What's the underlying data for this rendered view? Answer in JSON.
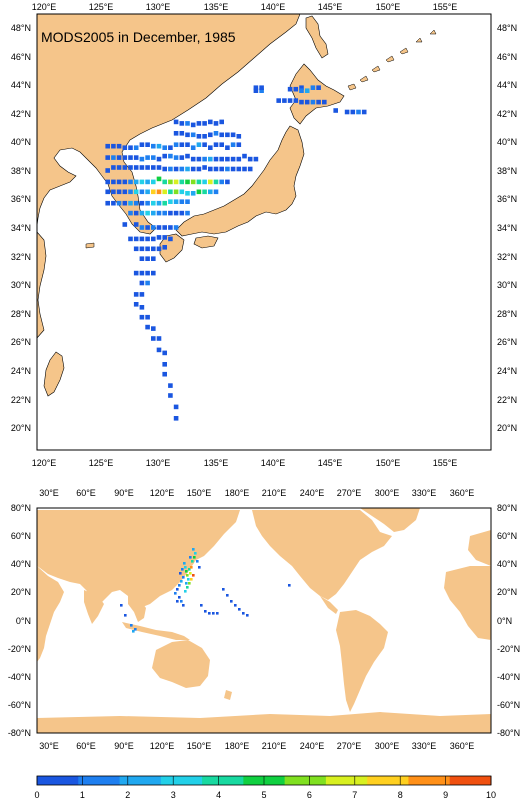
{
  "title": "MODS2005 in December, 1985",
  "colors": {
    "land": "#f5c58a",
    "ocean": "#ffffff",
    "frame": "#000000"
  },
  "top_map": {
    "lon_labels": [
      "120°E",
      "125°E",
      "130°E",
      "135°E",
      "140°E",
      "145°E",
      "150°E",
      "155°E"
    ],
    "lat_labels": [
      "48°N",
      "46°N",
      "44°N",
      "42°N",
      "40°N",
      "38°N",
      "36°N",
      "34°N",
      "32°N",
      "30°N",
      "28°N",
      "26°N",
      "24°N",
      "22°N",
      "20°N"
    ]
  },
  "bottom_map": {
    "lon_labels": [
      "30°E",
      "60°E",
      "90°E",
      "120°E",
      "150°E",
      "180°E",
      "210°E",
      "240°E",
      "270°E",
      "300°E",
      "330°E",
      "360°E"
    ],
    "lat_labels": [
      "80°N",
      "60°N",
      "40°N",
      "20°N",
      "0°N",
      "-20°N",
      "-40°N",
      "-60°N",
      "-80°N"
    ]
  },
  "colorbar": {
    "labels": [
      "0",
      "1",
      "2",
      "3",
      "4",
      "5",
      "6",
      "7",
      "8",
      "9",
      "10"
    ],
    "colors": [
      "#1a56e0",
      "#1e7ff0",
      "#20a8f0",
      "#22d0e8",
      "#18d9a0",
      "#10d040",
      "#80e020",
      "#d8f020",
      "#ffd020",
      "#ff9018",
      "#f05010"
    ]
  },
  "observation_cells": {
    "top": [
      [
        1,
        38,
        38,
        0
      ],
      [
        1,
        38,
        39,
        0
      ],
      [
        1,
        39,
        38,
        1
      ],
      [
        1,
        39,
        39,
        0
      ],
      [
        1,
        44,
        37,
        0
      ],
      [
        1,
        45,
        37,
        0
      ],
      [
        1,
        46,
        36,
        0
      ],
      [
        1,
        46,
        35,
        1
      ],
      [
        1,
        47,
        35,
        2
      ],
      [
        1,
        48,
        36,
        1
      ],
      [
        1,
        49,
        36,
        0
      ],
      [
        2,
        42,
        46,
        0
      ],
      [
        2,
        43,
        46,
        0
      ],
      [
        2,
        44,
        46,
        0
      ],
      [
        2,
        45,
        46,
        0
      ],
      [
        2,
        46,
        44,
        0
      ],
      [
        2,
        47,
        44,
        0
      ],
      [
        2,
        48,
        44,
        1
      ],
      [
        2,
        49,
        44,
        0
      ],
      [
        2,
        50,
        44,
        0
      ],
      [
        3,
        52,
        39,
        0
      ],
      [
        3,
        54,
        40,
        0
      ],
      [
        3,
        55,
        40,
        0
      ],
      [
        3,
        56,
        40,
        1
      ],
      [
        3,
        57,
        40,
        0
      ],
      [
        4,
        24,
        24,
        0
      ],
      [
        4,
        25,
        25,
        0
      ],
      [
        4,
        26,
        25,
        1
      ],
      [
        4,
        27,
        26,
        0
      ],
      [
        4,
        28,
        25,
        0
      ],
      [
        4,
        29,
        25,
        0
      ],
      [
        4,
        30,
        24,
        0
      ],
      [
        4,
        31,
        25,
        0
      ],
      [
        4,
        32,
        24,
        0
      ],
      [
        5,
        24,
        30,
        0
      ],
      [
        5,
        25,
        30,
        0
      ],
      [
        5,
        26,
        31,
        0
      ],
      [
        5,
        27,
        31,
        1
      ],
      [
        5,
        28,
        32,
        0
      ],
      [
        5,
        29,
        32,
        0
      ],
      [
        5,
        30,
        31,
        0
      ],
      [
        5,
        31,
        30,
        1
      ],
      [
        5,
        32,
        31,
        0
      ],
      [
        5,
        33,
        31,
        0
      ],
      [
        5,
        34,
        31,
        0
      ],
      [
        5,
        35,
        32,
        0
      ],
      [
        6,
        12,
        28,
        0
      ],
      [
        6,
        13,
        28,
        0
      ],
      [
        6,
        14,
        28,
        0
      ],
      [
        6,
        15,
        29,
        0
      ],
      [
        6,
        16,
        29,
        0
      ],
      [
        6,
        17,
        29,
        1
      ],
      [
        6,
        18,
        30,
        0
      ],
      [
        6,
        19,
        30,
        0
      ],
      [
        6,
        20,
        31,
        1
      ],
      [
        6,
        21,
        31,
        2
      ],
      [
        6,
        22,
        32,
        1
      ],
      [
        6,
        23,
        32,
        0
      ],
      [
        6,
        24,
        33,
        1
      ],
      [
        6,
        25,
        33,
        0
      ],
      [
        6,
        26,
        33,
        0
      ],
      [
        6,
        27,
        32,
        1
      ],
      [
        6,
        28,
        33,
        2
      ],
      [
        6,
        29,
        33,
        0
      ],
      [
        6,
        30,
        32,
        0
      ],
      [
        6,
        31,
        33,
        0
      ],
      [
        6,
        32,
        33,
        0
      ],
      [
        6,
        33,
        32,
        0
      ],
      [
        6,
        34,
        33,
        1
      ],
      [
        6,
        35,
        33,
        0
      ],
      [
        7,
        12,
        28,
        0
      ],
      [
        7,
        13,
        28,
        1
      ],
      [
        7,
        14,
        28,
        0
      ],
      [
        7,
        15,
        28,
        0
      ],
      [
        7,
        16,
        28,
        0
      ],
      [
        7,
        17,
        28,
        0
      ],
      [
        7,
        18,
        29,
        1
      ],
      [
        7,
        19,
        28,
        1
      ],
      [
        7,
        20,
        28,
        1
      ],
      [
        7,
        21,
        29,
        0
      ],
      [
        7,
        22,
        30,
        0
      ],
      [
        7,
        23,
        30,
        1
      ],
      [
        7,
        24,
        31,
        1
      ],
      [
        7,
        25,
        31,
        0
      ],
      [
        7,
        26,
        30,
        0
      ],
      [
        7,
        27,
        29,
        0
      ],
      [
        7,
        28,
        29,
        0
      ],
      [
        7,
        29,
        29,
        1
      ],
      [
        7,
        30,
        29,
        2
      ],
      [
        7,
        31,
        29,
        0
      ],
      [
        7,
        32,
        29,
        0
      ],
      [
        7,
        33,
        29,
        0
      ],
      [
        7,
        34,
        29,
        0
      ],
      [
        7,
        35,
        29,
        0
      ],
      [
        7,
        36,
        30,
        0
      ],
      [
        7,
        37,
        29,
        0
      ],
      [
        7,
        38,
        29,
        0
      ],
      [
        8,
        12,
        26,
        0
      ],
      [
        8,
        13,
        27,
        0
      ],
      [
        8,
        14,
        27,
        0
      ],
      [
        8,
        15,
        27,
        0
      ],
      [
        8,
        16,
        27,
        0
      ],
      [
        8,
        17,
        27,
        0
      ],
      [
        8,
        18,
        27,
        0
      ],
      [
        8,
        19,
        27,
        0
      ],
      [
        8,
        20,
        27,
        0
      ],
      [
        8,
        21,
        27,
        0
      ],
      [
        8,
        22,
        28,
        0
      ],
      [
        8,
        23,
        28,
        1
      ],
      [
        8,
        24,
        28,
        0
      ],
      [
        8,
        25,
        28,
        1
      ],
      [
        8,
        26,
        28,
        2
      ],
      [
        8,
        27,
        28,
        0
      ],
      [
        8,
        28,
        28,
        0
      ],
      [
        8,
        29,
        27,
        0
      ],
      [
        8,
        30,
        28,
        0
      ],
      [
        8,
        31,
        28,
        0
      ],
      [
        8,
        32,
        28,
        0
      ],
      [
        8,
        33,
        28,
        1
      ],
      [
        8,
        34,
        28,
        0
      ],
      [
        8,
        35,
        28,
        0
      ],
      [
        8,
        36,
        28,
        0
      ],
      [
        8,
        37,
        28,
        0
      ],
      [
        9,
        12,
        26,
        0
      ],
      [
        9,
        13,
        26,
        0
      ],
      [
        9,
        14,
        26,
        0
      ],
      [
        9,
        15,
        26,
        0
      ],
      [
        9,
        16,
        26,
        1
      ],
      [
        9,
        17,
        26,
        2
      ],
      [
        9,
        18,
        26,
        3
      ],
      [
        9,
        19,
        26,
        2
      ],
      [
        9,
        20,
        26,
        3
      ],
      [
        9,
        21,
        27,
        5
      ],
      [
        9,
        22,
        26,
        4
      ],
      [
        9,
        23,
        26,
        6
      ],
      [
        9,
        24,
        26,
        7
      ],
      [
        9,
        25,
        26,
        4
      ],
      [
        9,
        26,
        26,
        5
      ],
      [
        9,
        27,
        26,
        6
      ],
      [
        9,
        28,
        26,
        4
      ],
      [
        9,
        29,
        26,
        3
      ],
      [
        9,
        30,
        26,
        7
      ],
      [
        9,
        31,
        26,
        4
      ],
      [
        9,
        32,
        26,
        1
      ],
      [
        9,
        33,
        26,
        0
      ],
      [
        10,
        12,
        25,
        0
      ],
      [
        10,
        13,
        25,
        0
      ],
      [
        10,
        14,
        25,
        0
      ],
      [
        10,
        15,
        25,
        0
      ],
      [
        10,
        16,
        25,
        1
      ],
      [
        10,
        17,
        25,
        3
      ],
      [
        10,
        18,
        25,
        1
      ],
      [
        10,
        19,
        25,
        2
      ],
      [
        10,
        20,
        25,
        8
      ],
      [
        10,
        21,
        25,
        9
      ],
      [
        10,
        22,
        25,
        7
      ],
      [
        10,
        23,
        25,
        4
      ],
      [
        10,
        24,
        25,
        6
      ],
      [
        10,
        25,
        25,
        3
      ],
      [
        10,
        26,
        26,
        3
      ],
      [
        10,
        27,
        26,
        2
      ],
      [
        10,
        28,
        25,
        5
      ],
      [
        10,
        29,
        25,
        4
      ],
      [
        10,
        30,
        25,
        2
      ],
      [
        10,
        31,
        25,
        1
      ],
      [
        11,
        12,
        25,
        0
      ],
      [
        11,
        13,
        25,
        0
      ],
      [
        11,
        14,
        25,
        1
      ],
      [
        11,
        15,
        25,
        0
      ],
      [
        11,
        16,
        25,
        2
      ],
      [
        11,
        17,
        25,
        1
      ],
      [
        11,
        18,
        25,
        0
      ],
      [
        11,
        19,
        25,
        1
      ],
      [
        11,
        20,
        25,
        3
      ],
      [
        11,
        21,
        25,
        2
      ],
      [
        11,
        22,
        25,
        4
      ],
      [
        11,
        23,
        24,
        3
      ],
      [
        11,
        24,
        24,
        2
      ],
      [
        11,
        25,
        24,
        1
      ],
      [
        11,
        26,
        24,
        1
      ],
      [
        12,
        16,
        24,
        1
      ],
      [
        12,
        17,
        24,
        0
      ],
      [
        12,
        18,
        24,
        2
      ],
      [
        12,
        19,
        24,
        3
      ],
      [
        12,
        20,
        24,
        2
      ],
      [
        12,
        21,
        24,
        1
      ],
      [
        12,
        22,
        24,
        1
      ],
      [
        12,
        23,
        24,
        0
      ],
      [
        12,
        24,
        24,
        0
      ],
      [
        12,
        25,
        24,
        0
      ],
      [
        12,
        26,
        24,
        1
      ],
      [
        13,
        15,
        24,
        0
      ],
      [
        13,
        17,
        24,
        0
      ],
      [
        13,
        18,
        23,
        1
      ],
      [
        13,
        19,
        23,
        0
      ],
      [
        13,
        20,
        23,
        1
      ],
      [
        13,
        21,
        23,
        0
      ],
      [
        13,
        22,
        23,
        0
      ],
      [
        13,
        23,
        23,
        0
      ],
      [
        13,
        24,
        23,
        1
      ],
      [
        14,
        16,
        23,
        0
      ],
      [
        14,
        17,
        23,
        0
      ],
      [
        14,
        18,
        23,
        0
      ],
      [
        14,
        19,
        23,
        0
      ],
      [
        14,
        20,
        23,
        0
      ],
      [
        14,
        21,
        22,
        0
      ],
      [
        14,
        22,
        22,
        0
      ],
      [
        14,
        23,
        23,
        0
      ],
      [
        15,
        17,
        22,
        0
      ],
      [
        15,
        18,
        22,
        0
      ],
      [
        15,
        19,
        22,
        0
      ],
      [
        15,
        20,
        22,
        0
      ],
      [
        15,
        21,
        22,
        0
      ],
      [
        15,
        22,
        21,
        0
      ],
      [
        16,
        18,
        21,
        0
      ],
      [
        16,
        19,
        21,
        0
      ],
      [
        16,
        20,
        21,
        0
      ],
      [
        17,
        17,
        20,
        0
      ],
      [
        17,
        18,
        20,
        0
      ],
      [
        17,
        19,
        20,
        0
      ],
      [
        17,
        20,
        20,
        0
      ],
      [
        18,
        18,
        19,
        0
      ],
      [
        18,
        19,
        19,
        1
      ],
      [
        19,
        17,
        19,
        0
      ],
      [
        19,
        18,
        19,
        0
      ],
      [
        20,
        17,
        18,
        0
      ],
      [
        20,
        18,
        17,
        0
      ],
      [
        21,
        18,
        16,
        0
      ],
      [
        21,
        19,
        16,
        0
      ],
      [
        22,
        19,
        15,
        0
      ],
      [
        22,
        20,
        16,
        0
      ],
      [
        23,
        20,
        15,
        0
      ],
      [
        23,
        21,
        15,
        0
      ],
      [
        24,
        21,
        15,
        0
      ],
      [
        24,
        22,
        14,
        0
      ],
      [
        25,
        22,
        14,
        0
      ],
      [
        26,
        22,
        13,
        0
      ],
      [
        27,
        23,
        13,
        0
      ],
      [
        28,
        23,
        12,
        0
      ],
      [
        29,
        24,
        12,
        0
      ],
      [
        30,
        24,
        12,
        0
      ]
    ]
  }
}
